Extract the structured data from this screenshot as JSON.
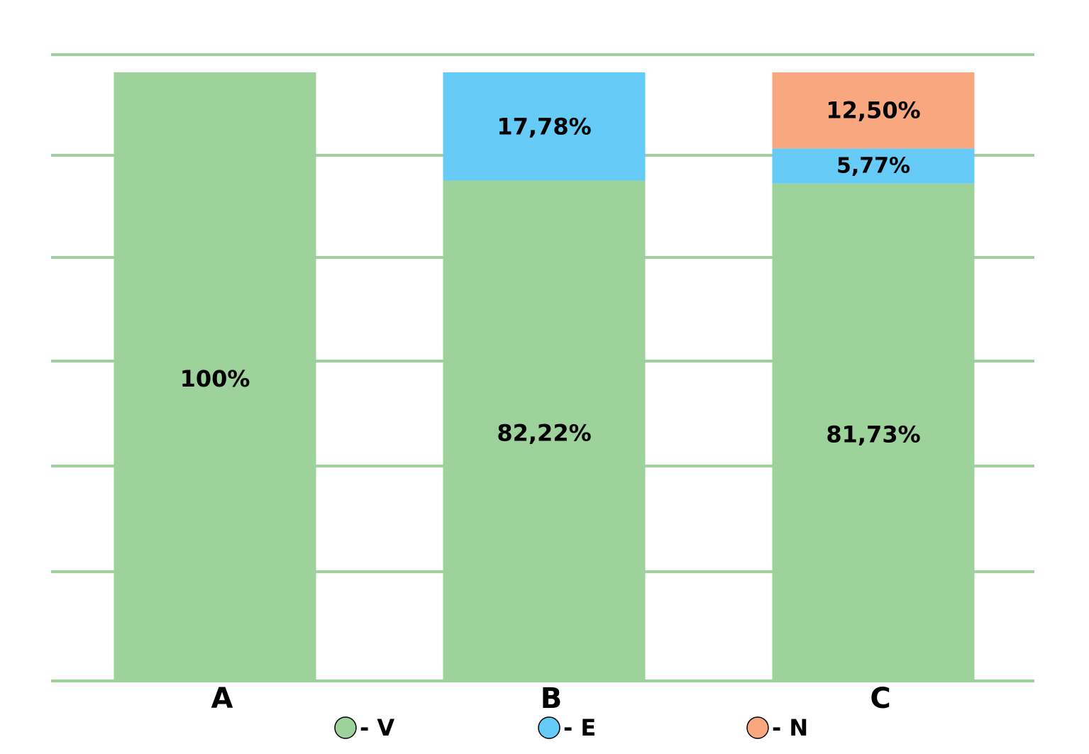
{
  "chart_data": {
    "type": "bar",
    "stacked": true,
    "categories": [
      "A",
      "B",
      "C"
    ],
    "series": [
      {
        "name": "V",
        "color": "#9dd29a",
        "values": [
          100,
          82.22,
          81.73
        ],
        "labels": [
          "100%",
          "82,22%",
          "81,73%"
        ]
      },
      {
        "name": "E",
        "color": "#66cbf7",
        "values": [
          0,
          17.78,
          5.77
        ],
        "labels": [
          "",
          "17,78%",
          "5,77%"
        ]
      },
      {
        "name": "N",
        "color": "#f9a77f",
        "values": [
          0,
          0,
          12.5
        ],
        "labels": [
          "",
          "",
          "12,50%"
        ]
      }
    ],
    "legend": {
      "position": "bottom",
      "items": [
        {
          "series": "V",
          "text": "- V",
          "color": "#9dd29a"
        },
        {
          "series": "E",
          "text": "- E",
          "color": "#66cbf7"
        },
        {
          "series": "N",
          "text": "- N",
          "color": "#f9a77f"
        }
      ]
    },
    "ylim": [
      0,
      100
    ],
    "grid": true,
    "grid_color": "#9dd29a",
    "title": "",
    "xlabel": "",
    "ylabel": ""
  }
}
